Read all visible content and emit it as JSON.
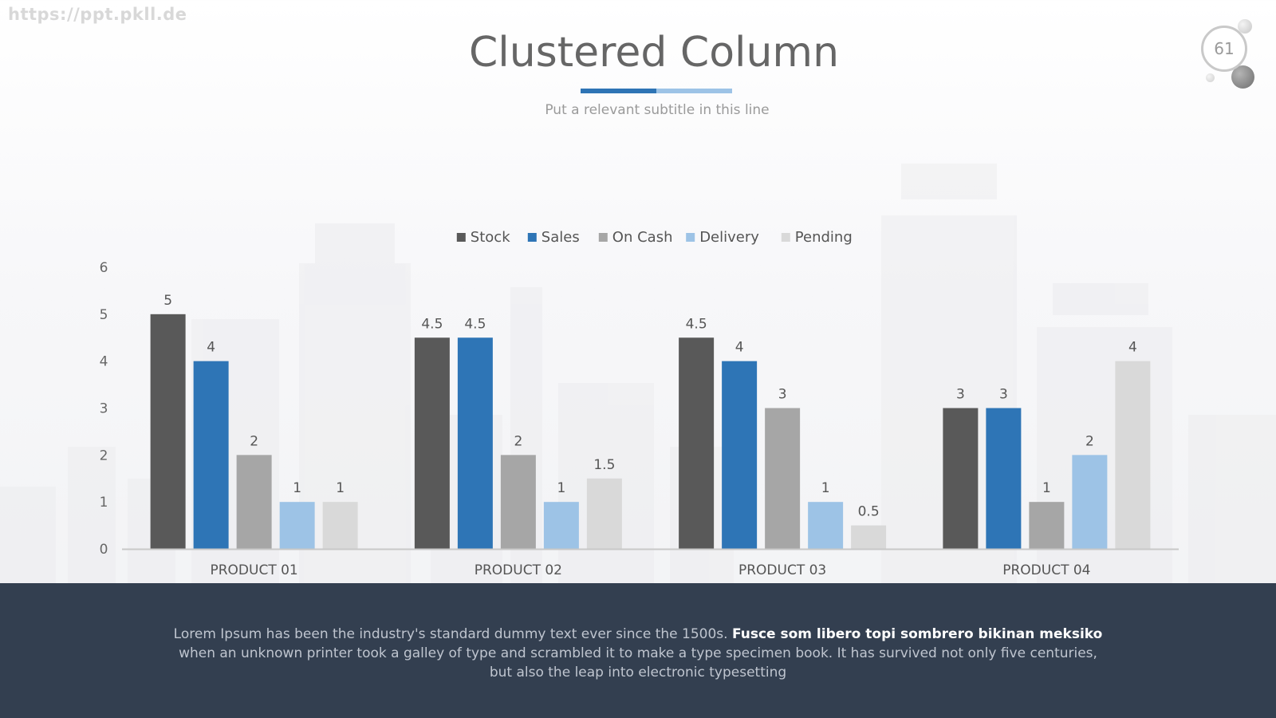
{
  "watermark": "https://ppt.pkll.de",
  "page_number": "61",
  "title": "Clustered Column",
  "subtitle": "Put a relevant subtitle in this line",
  "colors": {
    "accent_dark": "#2e74b5",
    "accent_light": "#9dc3e6",
    "footer_bg": "#333f50"
  },
  "footer": {
    "text_before": "Lorem Ipsum has been the industry's standard dummy text ever since the 1500s. ",
    "text_bold": "Fusce som libero topi sombrero bikinan meksiko",
    "text_after": " when an unknown printer took a galley of type and scrambled it to make a type specimen book. It has survived not only five centuries, but also the leap into electronic typesetting"
  },
  "chart_data": {
    "type": "bar",
    "categories": [
      "PRODUCT 01",
      "PRODUCT 02",
      "PRODUCT 03",
      "PRODUCT 04"
    ],
    "series": [
      {
        "name": "Stock",
        "color": "#595959",
        "values": [
          5,
          4.5,
          4.5,
          3
        ]
      },
      {
        "name": "Sales",
        "color": "#2e75b6",
        "values": [
          4,
          4.5,
          4,
          3
        ]
      },
      {
        "name": "On Cash",
        "color": "#a6a6a6",
        "values": [
          2,
          2,
          3,
          1
        ]
      },
      {
        "name": "Delivery",
        "color": "#9dc3e6",
        "values": [
          1,
          1,
          1,
          2
        ]
      },
      {
        "name": "Pending",
        "color": "#d9d9d9",
        "values": [
          1,
          1.5,
          0.5,
          4
        ]
      }
    ],
    "ylim": [
      0,
      6
    ],
    "yticks": [
      0,
      1,
      2,
      3,
      4,
      5,
      6
    ],
    "grid": false,
    "legend": "top-center",
    "data_labels": true
  }
}
